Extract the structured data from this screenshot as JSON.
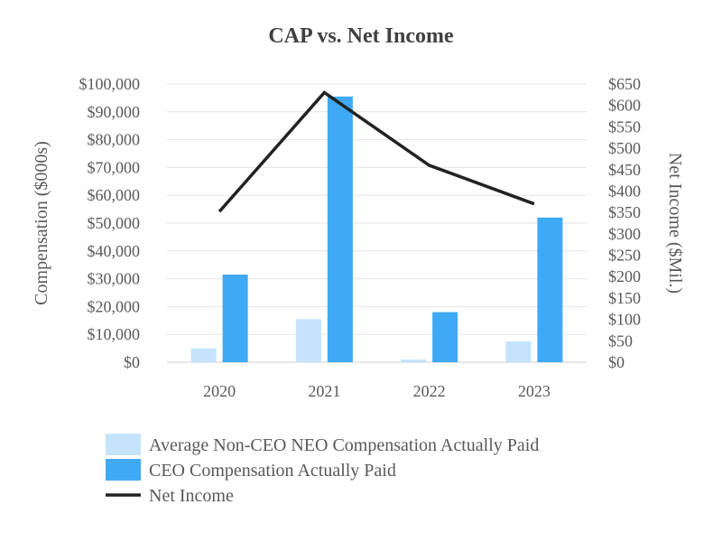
{
  "chart_data": {
    "type": "bar",
    "title": "CAP vs. Net Income",
    "categories": [
      "2020",
      "2021",
      "2022",
      "2023"
    ],
    "series": [
      {
        "name": "Average Non-CEO NEO Compensation Actually Paid",
        "type": "bar",
        "axis": "left",
        "color": "#c5e4fb",
        "values": [
          5000,
          15500,
          1000,
          7500
        ]
      },
      {
        "name": "CEO Compensation Actually Paid",
        "type": "bar",
        "axis": "left",
        "color": "#3fa9f5",
        "values": [
          31500,
          95500,
          18000,
          52000
        ]
      },
      {
        "name": "Net Income",
        "type": "line",
        "axis": "right",
        "color": "#222222",
        "values": [
          352,
          630,
          460,
          370
        ]
      }
    ],
    "ylabel": "Compensation ($000s)",
    "y2label": "Net Income ($Mil.)",
    "ylim": [
      0,
      100000
    ],
    "y2lim": [
      0,
      650
    ],
    "yticks": [
      "$0",
      "$10,000",
      "$20,000",
      "$30,000",
      "$40,000",
      "$50,000",
      "$60,000",
      "$70,000",
      "$80,000",
      "$90,000",
      "$100,000"
    ],
    "y2ticks": [
      "$0",
      "$50",
      "$100",
      "$150",
      "$200",
      "$250",
      "$300",
      "$350",
      "$400",
      "$450",
      "$500",
      "$550",
      "$600",
      "$650"
    ],
    "grid": true,
    "legend": "bottom"
  }
}
